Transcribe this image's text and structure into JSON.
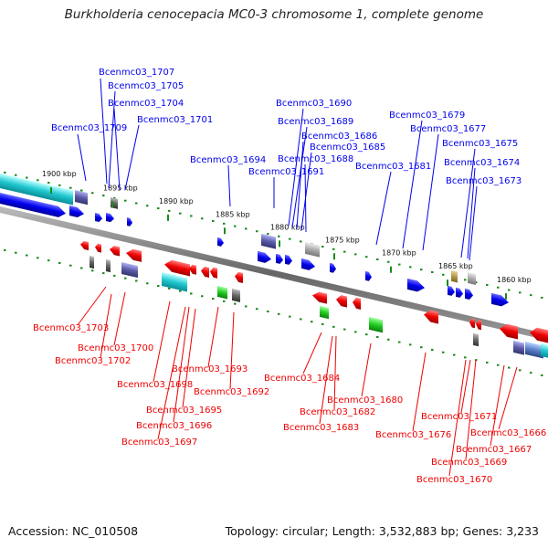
{
  "title": "Burkholderia cenocepacia MC0-3 chromosome 1, complete genome",
  "footer": {
    "accession": "Accession: NC_010508",
    "summary": "Topology: circular; Length: 3,532,883 bp; Genes: 3,233"
  },
  "colors": {
    "forward": "#0000ee",
    "reverse": "#ee0000",
    "backbone": "#777777",
    "tick": "#1a8a1a"
  },
  "scale_ticks": [
    "1900 kbp",
    "1895 kbp",
    "1890 kbp",
    "1885 kbp",
    "1880 kbp",
    "1875 kbp",
    "1870 kbp",
    "1865 kbp",
    "1860 kbp"
  ],
  "top_labels": [
    "Bcenmc03_1707",
    "Bcenmc03_1705",
    "Bcenmc03_1704",
    "Bcenmc03_1701",
    "Bcenmc03_1709",
    "Bcenmc03_1694",
    "Bcenmc03_1690",
    "Bcenmc03_1689",
    "Bcenmc03_1686",
    "Bcenmc03_1685",
    "Bcenmc03_1688",
    "Bcenmc03_1691",
    "Bcenmc03_1681",
    "Bcenmc03_1679",
    "Bcenmc03_1677",
    "Bcenmc03_1675",
    "Bcenmc03_1674",
    "Bcenmc03_1673"
  ],
  "bottom_labels": [
    "Bcenmc03_1703",
    "Bcenmc03_1700",
    "Bcenmc03_1702",
    "Bcenmc03_1698",
    "Bcenmc03_1693",
    "Bcenmc03_1692",
    "Bcenmc03_1695",
    "Bcenmc03_1696",
    "Bcenmc03_1697",
    "Bcenmc03_1684",
    "Bcenmc03_1680",
    "Bcenmc03_1682",
    "Bcenmc03_1683",
    "Bcenmc03_1676",
    "Bcenmc03_1671",
    "Bcenmc03_1666",
    "Bcenmc03_1667",
    "Bcenmc03_1669",
    "Bcenmc03_1670"
  ]
}
